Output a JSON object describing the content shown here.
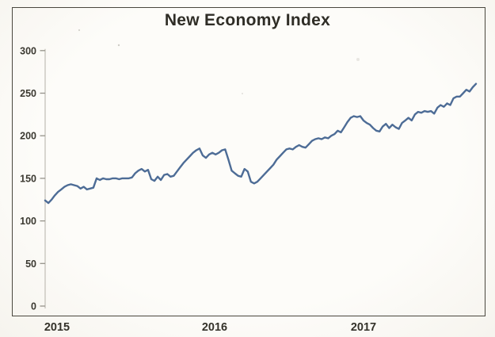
{
  "chart_data": {
    "type": "line",
    "title": "New Economy Index",
    "xlabel": "",
    "ylabel": "",
    "ylim": [
      0,
      300
    ],
    "grid": false,
    "legend": "none",
    "line_color": "#4d6c96",
    "axis_color": "#c9c6bf",
    "tick_color": "#95928a",
    "y_tick_label_color": "#3b3931",
    "x_tick_label_color": "#34322a",
    "y_ticks": [
      300,
      250,
      200,
      150,
      100,
      50,
      0
    ],
    "x_ticks": [
      "2015",
      "2016",
      "2017"
    ],
    "series": [
      {
        "name": "New Economy Index",
        "values": [
          124,
          121,
          125,
          130,
          134,
          137,
          140,
          142,
          143,
          142,
          141,
          138,
          140,
          137,
          138,
          139,
          150,
          148,
          150,
          149,
          149,
          150,
          150,
          149,
          150,
          150,
          150,
          151,
          156,
          159,
          161,
          158,
          160,
          149,
          147,
          152,
          148,
          154,
          155,
          152,
          153,
          158,
          163,
          168,
          172,
          176,
          180,
          183,
          185,
          177,
          174,
          178,
          180,
          178,
          180,
          183,
          184,
          172,
          159,
          156,
          153,
          152,
          161,
          158,
          146,
          144,
          146,
          150,
          154,
          158,
          162,
          166,
          172,
          176,
          180,
          184,
          185,
          184,
          187,
          189,
          187,
          186,
          190,
          194,
          196,
          197,
          196,
          198,
          197,
          200,
          202,
          206,
          204,
          210,
          216,
          221,
          223,
          222,
          223,
          218,
          215,
          213,
          209,
          206,
          205,
          211,
          214,
          209,
          213,
          210,
          208,
          215,
          218,
          221,
          218,
          225,
          228,
          227,
          229,
          228,
          229,
          226,
          233,
          236,
          234,
          238,
          236,
          244,
          246,
          246,
          250,
          254,
          252,
          257,
          261
        ]
      }
    ]
  }
}
